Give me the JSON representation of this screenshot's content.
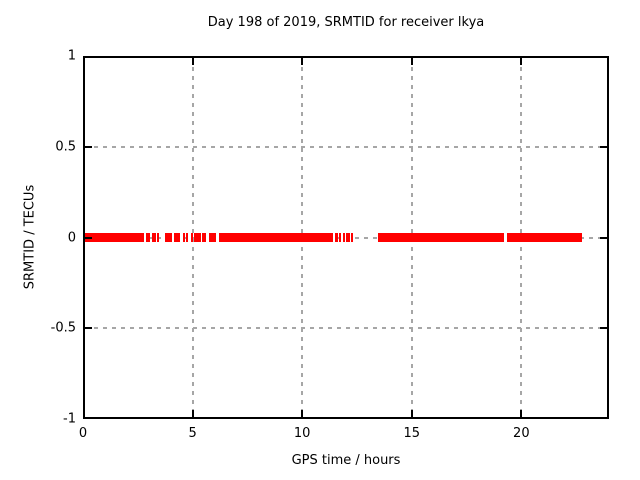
{
  "chart_data": {
    "type": "scatter",
    "title": "Day 198 of 2019, SRMTID for receiver lkya",
    "xlabel": "GPS time / hours",
    "ylabel": "SRMTID / TECUs",
    "xlim": [
      0,
      24
    ],
    "ylim": [
      -1,
      1
    ],
    "grid": true,
    "legend": "none",
    "marker_color": "#ff0000",
    "grid_color": "#a6a6a6",
    "xticks": {
      "values": [
        0,
        5,
        10,
        15,
        20
      ],
      "labels": [
        "0",
        "5",
        "10",
        "15",
        "20"
      ]
    },
    "yticks": {
      "values": [
        1,
        0.5,
        0,
        -0.5,
        -1
      ],
      "labels": [
        "1",
        "0.5",
        "0",
        "-0.5",
        "-1"
      ]
    },
    "series": [
      {
        "name": "SRMTID",
        "y": 0,
        "x_segments": [
          [
            0.11,
            2.79
          ],
          [
            2.87,
            3.04
          ],
          [
            3.13,
            3.32
          ],
          [
            3.36,
            3.47
          ],
          [
            3.74,
            3.95
          ],
          [
            3.99,
            4.08
          ],
          [
            4.15,
            4.43
          ],
          [
            4.54,
            4.65
          ],
          [
            4.72,
            4.79
          ],
          [
            4.93,
            5.0
          ],
          [
            5.06,
            5.38
          ],
          [
            5.45,
            5.63
          ],
          [
            5.73,
            6.07
          ],
          [
            6.2,
            11.4
          ],
          [
            11.5,
            11.62
          ],
          [
            11.68,
            11.78
          ],
          [
            11.86,
            11.95
          ],
          [
            12.02,
            12.18
          ],
          [
            12.24,
            12.31
          ],
          [
            13.45,
            19.21
          ],
          [
            19.34,
            22.75
          ]
        ]
      }
    ]
  }
}
